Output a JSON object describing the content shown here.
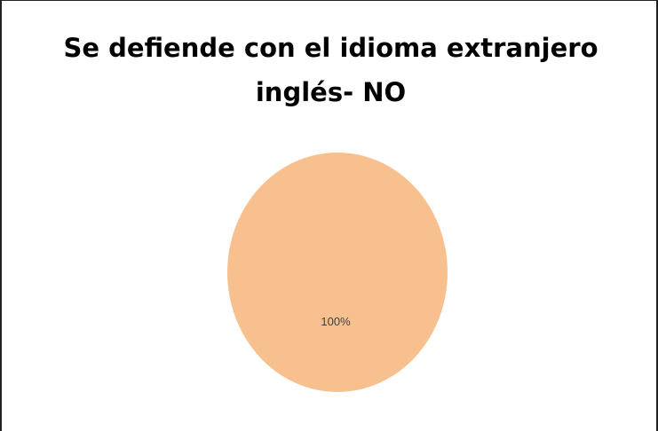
{
  "chart_data": {
    "type": "pie",
    "title_lines": [
      "Se defiende con el idioma extranjero",
      "inglés-  NO"
    ],
    "slices": [
      {
        "value": 100,
        "label": "100%",
        "color": "#F9C08F"
      }
    ],
    "legend": "none"
  }
}
